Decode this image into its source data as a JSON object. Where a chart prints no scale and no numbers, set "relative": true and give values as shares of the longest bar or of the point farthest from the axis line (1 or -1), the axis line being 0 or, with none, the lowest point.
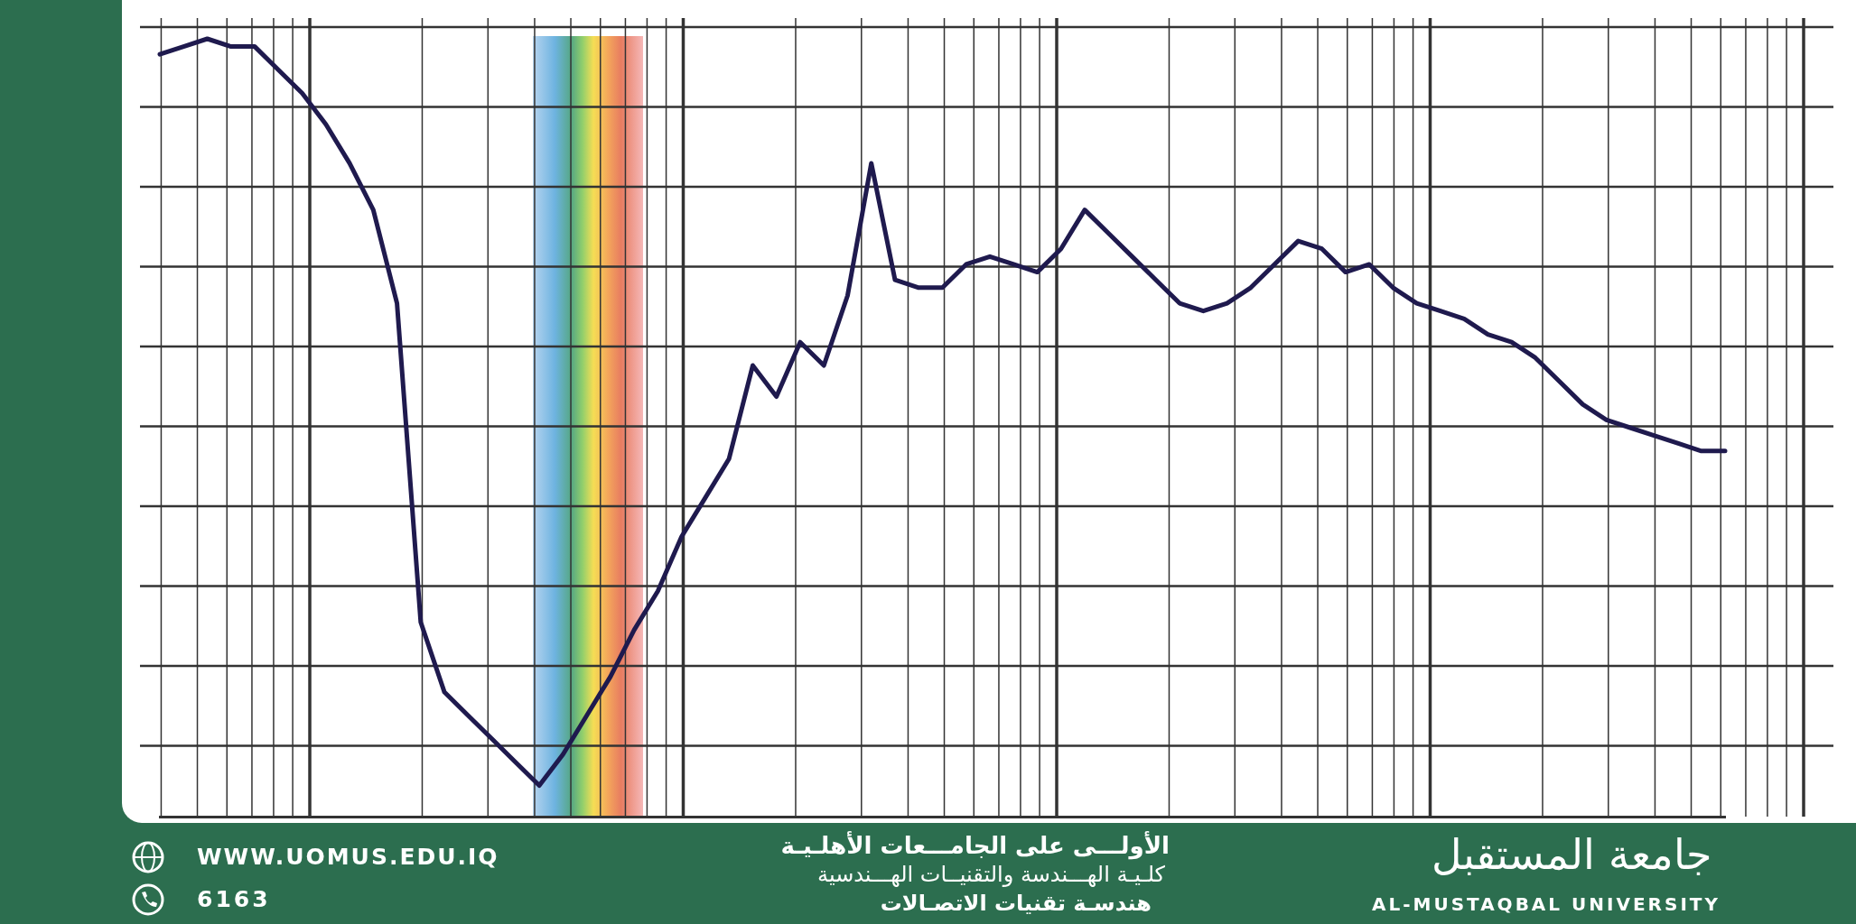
{
  "chart_data": {
    "type": "line",
    "relative": true,
    "grid": true,
    "legend": false,
    "marker": "none",
    "line_style": "solid",
    "categories": [
      null,
      null,
      null,
      null,
      null,
      null,
      null,
      null,
      null,
      null,
      null,
      null,
      null,
      null,
      null,
      null,
      null,
      null,
      null,
      null,
      null,
      null,
      null,
      null,
      null,
      null,
      null,
      null,
      null,
      null,
      null,
      null,
      null,
      null,
      null,
      null,
      null,
      null,
      null,
      null,
      null,
      null,
      null,
      null,
      null,
      null,
      null,
      null,
      null,
      null,
      null,
      null,
      null,
      null,
      null,
      null,
      null,
      null,
      null,
      null,
      null,
      null,
      null,
      null,
      null,
      null,
      null
    ],
    "series": [
      {
        "color": "#1f1a4e",
        "values": [
          0.98,
          0.99,
          1.0,
          0.99,
          0.99,
          0.96,
          0.93,
          0.89,
          0.84,
          0.78,
          0.66,
          0.25,
          0.16,
          0.13,
          0.1,
          0.07,
          0.04,
          0.08,
          0.13,
          0.18,
          0.24,
          0.29,
          0.36,
          0.41,
          0.46,
          0.58,
          0.54,
          0.61,
          0.58,
          0.67,
          0.84,
          0.69,
          0.68,
          0.68,
          0.71,
          0.72,
          0.71,
          0.7,
          0.73,
          0.78,
          0.75,
          0.72,
          0.69,
          0.66,
          0.65,
          0.66,
          0.68,
          0.71,
          0.74,
          0.73,
          0.7,
          0.71,
          0.68,
          0.66,
          0.65,
          0.64,
          0.62,
          0.61,
          0.59,
          0.56,
          0.53,
          0.51,
          0.5,
          0.49,
          0.48,
          0.47,
          0.47
        ]
      }
    ],
    "annotations": [
      "الأولـــى على الجامـــعات الأهلـيـة",
      "كلـيـة الهـــندسة والتقنيــات الهـــندسية",
      "هندسـة تقنيات الاتصـالات",
      "WWW.UOMUS.EDU.IQ",
      "6163",
      "جامعة المستقبل",
      "AL-MUSTAQBAL UNIVERSITY"
    ]
  }
}
